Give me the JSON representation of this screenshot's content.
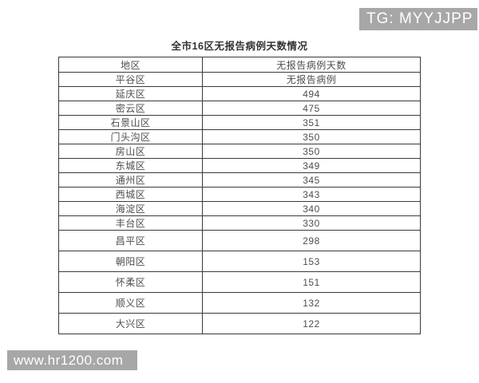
{
  "watermark_top": {
    "label": "TG: MYYJJPP"
  },
  "watermark_bottom": {
    "label": "www.hr1200.com"
  },
  "chart_data": {
    "type": "table",
    "title": "全市16区无报告病例天数情况",
    "columns": [
      "地区",
      "无报告病例天数"
    ],
    "rows": [
      [
        "平谷区",
        "无报告病例"
      ],
      [
        "延庆区",
        "494"
      ],
      [
        "密云区",
        "475"
      ],
      [
        "石景山区",
        "351"
      ],
      [
        "门头沟区",
        "350"
      ],
      [
        "房山区",
        "350"
      ],
      [
        "东城区",
        "349"
      ],
      [
        "通州区",
        "345"
      ],
      [
        "西城区",
        "343"
      ],
      [
        "海淀区",
        "340"
      ],
      [
        "丰台区",
        "330"
      ],
      [
        "昌平区",
        "298"
      ],
      [
        "朝阳区",
        "153"
      ],
      [
        "怀柔区",
        "151"
      ],
      [
        "顺义区",
        "132"
      ],
      [
        "大兴区",
        "122"
      ]
    ]
  },
  "colors": {
    "background": "#ffffff",
    "watermark_bg": "#a7a7a7",
    "watermark_text": "#ffffff",
    "table_border": "#3a3a3a",
    "table_text": "#4d4d4d",
    "title_text": "#333333"
  }
}
